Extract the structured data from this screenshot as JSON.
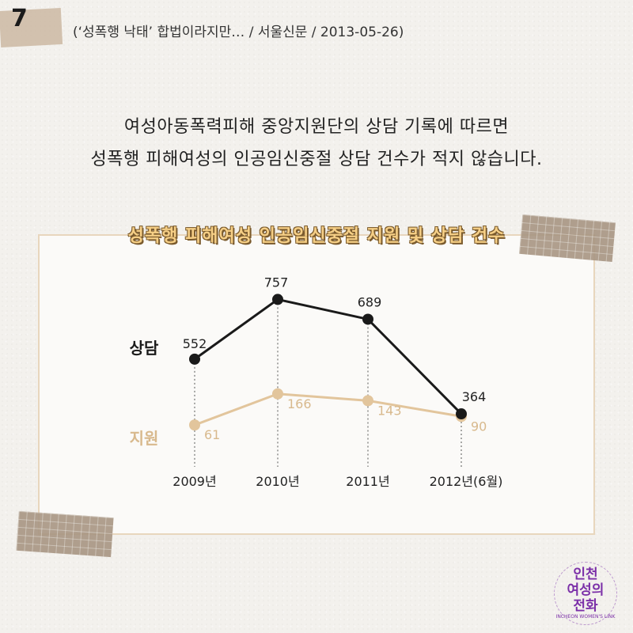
{
  "header": {
    "page_number": "7",
    "source": "(‘성폭행 낙태’ 합법이라지만… / 서울신문 / 2013-05-26)"
  },
  "headline": {
    "line1": "여성아동폭력피해 중앙지원단의 상담 기록에 따르면",
    "line2": "성폭행 피해여성의 인공임신중절 상담 건수가 적지 않습니다."
  },
  "logo": {
    "line1": "인천",
    "line2": "여성의",
    "line3": "전화",
    "small": "INCHEON WOMEN'S LINK"
  },
  "colors": {
    "consult": "#1a1a1a",
    "support": "#e2c59c",
    "support_label": "#d8b98d",
    "title_fill": "#f6cf86"
  },
  "chart_data": {
    "type": "line",
    "title": "성폭행 피해여성 인공임신중절 지원 및 상담 건수",
    "categories": [
      "2009년",
      "2010년",
      "2011년",
      "2012년(6월)"
    ],
    "series": [
      {
        "name": "상담",
        "values": [
          552,
          757,
          689,
          364
        ],
        "color": "#1a1a1a"
      },
      {
        "name": "지원",
        "values": [
          61,
          166,
          143,
          90
        ],
        "color": "#e2c59c"
      }
    ],
    "grid": false,
    "legend": "left"
  }
}
